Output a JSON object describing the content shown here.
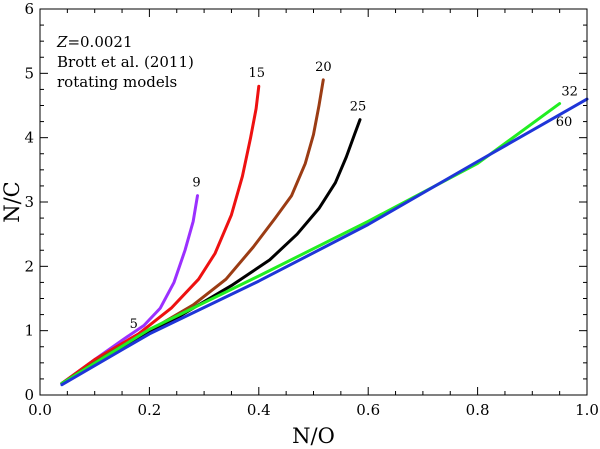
{
  "chart_data": {
    "type": "line",
    "xlabel": "N/O",
    "ylabel": "N/C",
    "xlim": [
      0.0,
      1.0
    ],
    "ylim": [
      0,
      6
    ],
    "xticks": [
      "0.0",
      "0.2",
      "0.4",
      "0.6",
      "0.8",
      "1.0"
    ],
    "yticks": [
      "0",
      "1",
      "2",
      "3",
      "4",
      "5",
      "6"
    ],
    "grid": false,
    "annotations": [
      {
        "italic": "Z",
        "text": "=0.0021"
      },
      {
        "text": "Brott et al. (2011)"
      },
      {
        "text": "rotating models"
      }
    ],
    "series": [
      {
        "label": "5",
        "color": "#3cb0ff",
        "x": [
          0.04,
          0.1,
          0.15,
          0.175
        ],
        "y": [
          0.18,
          0.5,
          0.78,
          0.92
        ]
      },
      {
        "label": "9",
        "color": "#9b30ff",
        "x": [
          0.04,
          0.1,
          0.15,
          0.19,
          0.22,
          0.245,
          0.265,
          0.28,
          0.288
        ],
        "y": [
          0.18,
          0.55,
          0.85,
          1.08,
          1.35,
          1.75,
          2.25,
          2.7,
          3.1
        ]
      },
      {
        "label": "15",
        "color": "#ee1111",
        "x": [
          0.04,
          0.1,
          0.18,
          0.24,
          0.29,
          0.32,
          0.35,
          0.37,
          0.385,
          0.395,
          0.4
        ],
        "y": [
          0.18,
          0.55,
          0.95,
          1.35,
          1.8,
          2.2,
          2.8,
          3.4,
          4.0,
          4.45,
          4.8
        ]
      },
      {
        "label": "20",
        "color": "#9b3c14",
        "x": [
          0.04,
          0.12,
          0.2,
          0.28,
          0.34,
          0.39,
          0.43,
          0.46,
          0.485,
          0.5,
          0.51,
          0.518
        ],
        "y": [
          0.18,
          0.62,
          1.0,
          1.4,
          1.8,
          2.3,
          2.75,
          3.1,
          3.6,
          4.05,
          4.5,
          4.9
        ]
      },
      {
        "label": "25",
        "color": "#000000",
        "x": [
          0.04,
          0.15,
          0.25,
          0.35,
          0.42,
          0.47,
          0.51,
          0.54,
          0.56,
          0.575,
          0.585
        ],
        "y": [
          0.18,
          0.75,
          1.2,
          1.7,
          2.1,
          2.5,
          2.9,
          3.3,
          3.7,
          4.05,
          4.28
        ]
      },
      {
        "label": "32",
        "color": "#22ee22",
        "x": [
          0.04,
          0.2,
          0.4,
          0.6,
          0.8,
          0.95
        ],
        "y": [
          0.18,
          1.02,
          1.85,
          2.7,
          3.6,
          4.53
        ]
      },
      {
        "label": "60",
        "color": "#1f35d8",
        "x": [
          0.04,
          0.2,
          0.4,
          0.6,
          0.8,
          1.0
        ],
        "y": [
          0.16,
          0.95,
          1.77,
          2.65,
          3.63,
          4.6
        ]
      }
    ]
  }
}
